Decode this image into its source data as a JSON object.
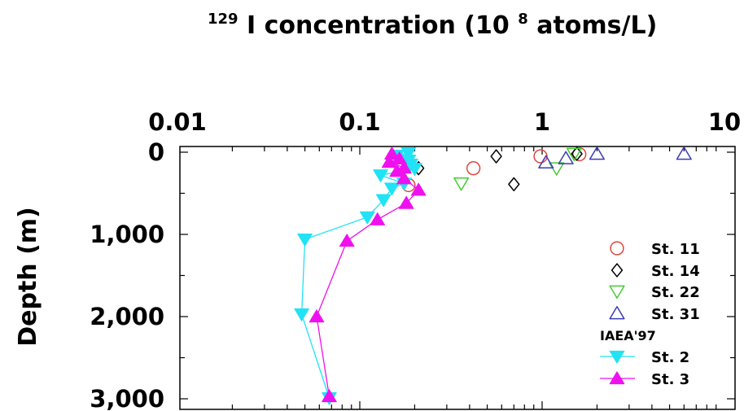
{
  "chart_data": {
    "type": "scatter",
    "title": {
      "pre": "129",
      "main": "I concentration (10",
      "sup": "8",
      "post": " atoms/L)"
    },
    "xlabel": "129I concentration (10^8 atoms/L)",
    "ylabel": "Depth (m)",
    "x_scale": "log",
    "xlim": [
      0.01,
      10
    ],
    "ylim": [
      0,
      3000
    ],
    "y_inverted": true,
    "x_ticks": [
      {
        "value": 0.01,
        "label": "0.01"
      },
      {
        "value": 0.1,
        "label": "0.1"
      },
      {
        "value": 1,
        "label": "1"
      },
      {
        "value": 10,
        "label": "10"
      }
    ],
    "y_ticks": [
      {
        "value": 0,
        "label": "0"
      },
      {
        "value": 1000,
        "label": "1,000"
      },
      {
        "value": 2000,
        "label": "2,000"
      },
      {
        "value": 3000,
        "label": "3,000"
      }
    ],
    "legend_position": "bottom-right",
    "legend_group_title": "IAEA'97",
    "series": [
      {
        "name": "St. 11",
        "marker": "circle",
        "color": "#e0453c",
        "line": false,
        "points": [
          [
            0.98,
            50
          ],
          [
            1.6,
            25
          ],
          [
            0.42,
            195
          ],
          [
            0.185,
            400
          ]
        ]
      },
      {
        "name": "St. 14",
        "marker": "diamond",
        "color": "#000000",
        "line": false,
        "points": [
          [
            1.55,
            20
          ],
          [
            0.56,
            50
          ],
          [
            0.21,
            195
          ],
          [
            0.7,
            390
          ]
        ]
      },
      {
        "name": "St. 22",
        "marker": "triangle-down",
        "color": "#44cc33",
        "line": false,
        "points": [
          [
            1.5,
            20
          ],
          [
            1.2,
            195
          ],
          [
            0.36,
            380
          ]
        ]
      },
      {
        "name": "St. 31",
        "marker": "triangle-up",
        "color": "#3a3ab8",
        "line": false,
        "points": [
          [
            6.0,
            20
          ],
          [
            2.0,
            20
          ],
          [
            1.35,
            75
          ],
          [
            1.05,
            125
          ]
        ]
      },
      {
        "name": "St. 2",
        "marker": "triangle-down-filled",
        "color": "#22e2f5",
        "line": true,
        "points": [
          [
            0.185,
            10
          ],
          [
            0.16,
            40
          ],
          [
            0.185,
            100
          ],
          [
            0.19,
            150
          ],
          [
            0.2,
            200
          ],
          [
            0.13,
            280
          ],
          [
            0.175,
            380
          ],
          [
            0.15,
            440
          ],
          [
            0.135,
            580
          ],
          [
            0.11,
            790
          ],
          [
            0.05,
            1060
          ],
          [
            0.048,
            1970
          ],
          [
            0.068,
            2990
          ]
        ]
      },
      {
        "name": "St. 3",
        "marker": "triangle-up-filled",
        "color": "#ee11ee",
        "line": true,
        "points": [
          [
            0.15,
            20
          ],
          [
            0.165,
            80
          ],
          [
            0.145,
            120
          ],
          [
            0.175,
            190
          ],
          [
            0.16,
            230
          ],
          [
            0.175,
            320
          ],
          [
            0.21,
            460
          ],
          [
            0.18,
            620
          ],
          [
            0.125,
            820
          ],
          [
            0.085,
            1080
          ],
          [
            0.058,
            2000
          ],
          [
            0.068,
            2970
          ]
        ]
      }
    ]
  }
}
